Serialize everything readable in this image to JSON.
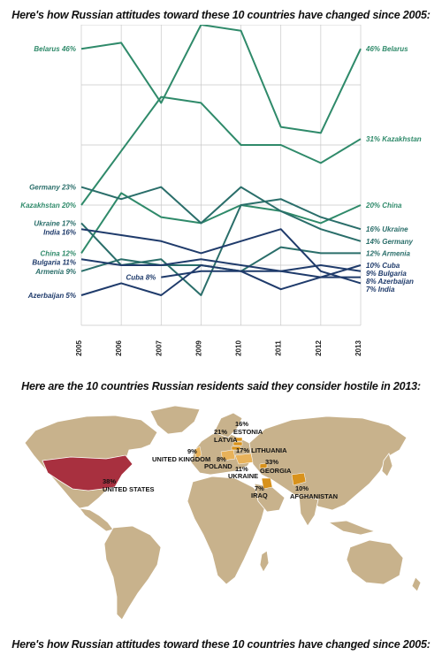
{
  "titles": {
    "top": "Here's how Russian attitudes toward these 10 countries have changed since 2005:",
    "middle": "Here are the 10 countries Russian residents said they consider hostile in 2013:",
    "bottom": "Here's how Russian attitudes toward these 10 countries have changed since 2005:"
  },
  "colors": {
    "green": "#2f8a6a",
    "teal": "#2a6e6a",
    "navy": "#1f3b6b",
    "map_land": "#c8b28c",
    "us_red": "#a8303f",
    "orange": "#d8921c",
    "light_orange": "#e8b25a"
  },
  "chart_data": [
    {
      "type": "line",
      "title": "Here's how Russian attitudes toward these 10 countries have changed since 2005:",
      "x": [
        2005,
        2006,
        2007,
        2009,
        2010,
        2011,
        2012,
        2013
      ],
      "ylim": [
        0,
        50
      ],
      "grid": true,
      "series": [
        {
          "name": "Belarus",
          "values": [
            46,
            47,
            37,
            50,
            49,
            33,
            32,
            46
          ],
          "start_label": "Belarus 46%",
          "end_label": "46% Belarus",
          "color": "#2f8a6a"
        },
        {
          "name": "Kazakhstan",
          "values": [
            20,
            29,
            38,
            37,
            30,
            30,
            27,
            31
          ],
          "start_label": "Kazakhstan 20%",
          "end_label": "31% Kazakhstan",
          "color": "#2f8a6a"
        },
        {
          "name": "China",
          "values": [
            12,
            22,
            18,
            17,
            20,
            19,
            17,
            20
          ],
          "start_label": "China 12%",
          "end_label": "20% China",
          "color": "#2f8a6a"
        },
        {
          "name": "Germany",
          "values": [
            23,
            21,
            23,
            17,
            23,
            19,
            16,
            14
          ],
          "start_label": "Germany 23%",
          "end_label": "14% Germany",
          "color": "#2a6e6a"
        },
        {
          "name": "Ukraine",
          "values": [
            17,
            10,
            11,
            5,
            20,
            21,
            18,
            16
          ],
          "start_label": "Ukraine 17%",
          "end_label": "16% Ukraine",
          "color": "#2a6e6a"
        },
        {
          "name": "Armenia",
          "values": [
            9,
            11,
            10,
            10,
            9,
            13,
            12,
            12
          ],
          "start_label": "Armenia 9%",
          "end_label": "12% Armenia",
          "color": "#2a6e6a"
        },
        {
          "name": "India",
          "values": [
            16,
            15,
            14,
            12,
            14,
            16,
            9,
            7
          ],
          "start_label": "India 16%",
          "end_label": "7% India",
          "color": "#1f3b6b"
        },
        {
          "name": "Bulgaria",
          "values": [
            11,
            10,
            10,
            11,
            10,
            9,
            10,
            9
          ],
          "start_label": "Bulgaria 11%",
          "end_label": "9% Bulgaria",
          "color": "#1f3b6b"
        },
        {
          "name": "Azerbaijan",
          "values": [
            5,
            7,
            5,
            10,
            9,
            6,
            8,
            8
          ],
          "start_label": "Azerbaijan 5%",
          "end_label": "8% Azerbaijan",
          "color": "#1f3b6b"
        },
        {
          "name": "Cuba",
          "values": [
            null,
            null,
            8,
            9,
            9,
            9,
            8,
            10
          ],
          "start_label": "Cuba 8%",
          "end_label": "10% Cuba",
          "color": "#1f3b6b"
        }
      ]
    },
    {
      "type": "map",
      "title": "Here are the 10 countries Russian residents said they consider hostile in 2013:",
      "points": [
        {
          "country": "UNITED STATES",
          "value": 38,
          "label": "38% UNITED STATES"
        },
        {
          "country": "GEORGIA",
          "value": 33,
          "label": "33% GEORGIA"
        },
        {
          "country": "LATVIA",
          "value": 21,
          "label": "21% LATVIA"
        },
        {
          "country": "LITHUANIA",
          "value": 17,
          "label": "17% LITHUANIA"
        },
        {
          "country": "ESTONIA",
          "value": 16,
          "label": "16% ESTONIA"
        },
        {
          "country": "UKRAINE",
          "value": 11,
          "label": "11% UKRAINE"
        },
        {
          "country": "AFGHANISTAN",
          "value": 10,
          "label": "10% AFGHANISTAN"
        },
        {
          "country": "UNITED KINGDOM",
          "value": 9,
          "label": "9% UNITED KINGDOM"
        },
        {
          "country": "POLAND",
          "value": 8,
          "label": "8% POLAND"
        },
        {
          "country": "IRAQ",
          "value": 7,
          "label": "7% IRAQ"
        }
      ]
    }
  ]
}
